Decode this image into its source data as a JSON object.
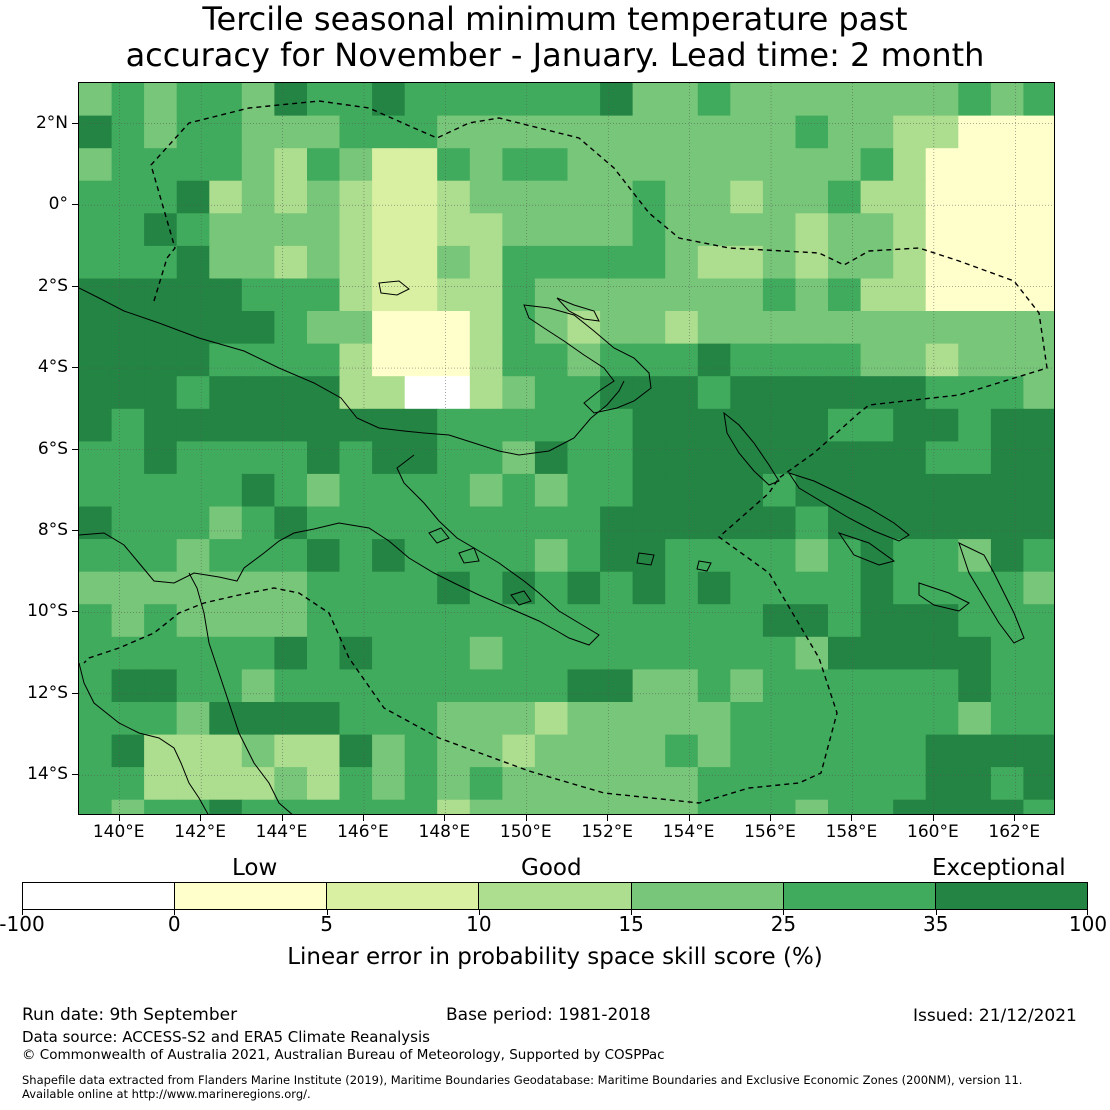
{
  "title_line1": "Tercile seasonal minimum temperature past",
  "title_line2": "accuracy for November - January. Lead time: 2 month",
  "map": {
    "lat_labels": [
      "2°N",
      "0°",
      "2°S",
      "4°S",
      "6°S",
      "8°S",
      "10°S",
      "12°S",
      "14°S"
    ],
    "lon_labels": [
      "140°E",
      "142°E",
      "144°E",
      "146°E",
      "148°E",
      "150°E",
      "152°E",
      "154°E",
      "156°E",
      "158°E",
      "160°E",
      "162°E"
    ],
    "lat_values": [
      2,
      0,
      -2,
      -4,
      -6,
      -8,
      -10,
      -12,
      -14
    ],
    "lon_values": [
      140,
      142,
      144,
      146,
      148,
      150,
      152,
      154,
      156,
      158,
      160,
      162
    ],
    "extent": {
      "lon_min": 139.0,
      "lon_max": 163.0,
      "lat_min": -15.0,
      "lat_max": 3.0
    },
    "grid_resolution_deg": 0.8
  },
  "colorbar": {
    "categories": [
      "Low",
      "Good",
      "Exceptional"
    ],
    "ticks": [
      "-100",
      "0",
      "5",
      "10",
      "15",
      "25",
      "35",
      "100"
    ],
    "colors": [
      "#ffffff",
      "#ffffcc",
      "#d9f0a3",
      "#addd8e",
      "#78c679",
      "#41ab5d",
      "#238443"
    ],
    "title": "Linear error in probability space skill score (%)"
  },
  "footer": {
    "run_date": "Run date: 9th September",
    "base_period": "Base period: 1981-2018",
    "issued": "Issued: 21/12/2021",
    "data_source": "Data source: ACCESS-S2 and ERA5 Climate Reanalysis",
    "copyright": "© Commonwealth of Australia 2021, Australian Bureau of Meteorology, Supported by COSPPac",
    "shapefile_line1": "Shapefile data extracted from Flanders Marine Institute (2019), Maritime Boundaries Geodatabase: Maritime Boundaries and Exclusive Economic Zones (200NM), version 11.",
    "shapefile_line2": "Available online at http://www.marineregions.org/."
  }
}
